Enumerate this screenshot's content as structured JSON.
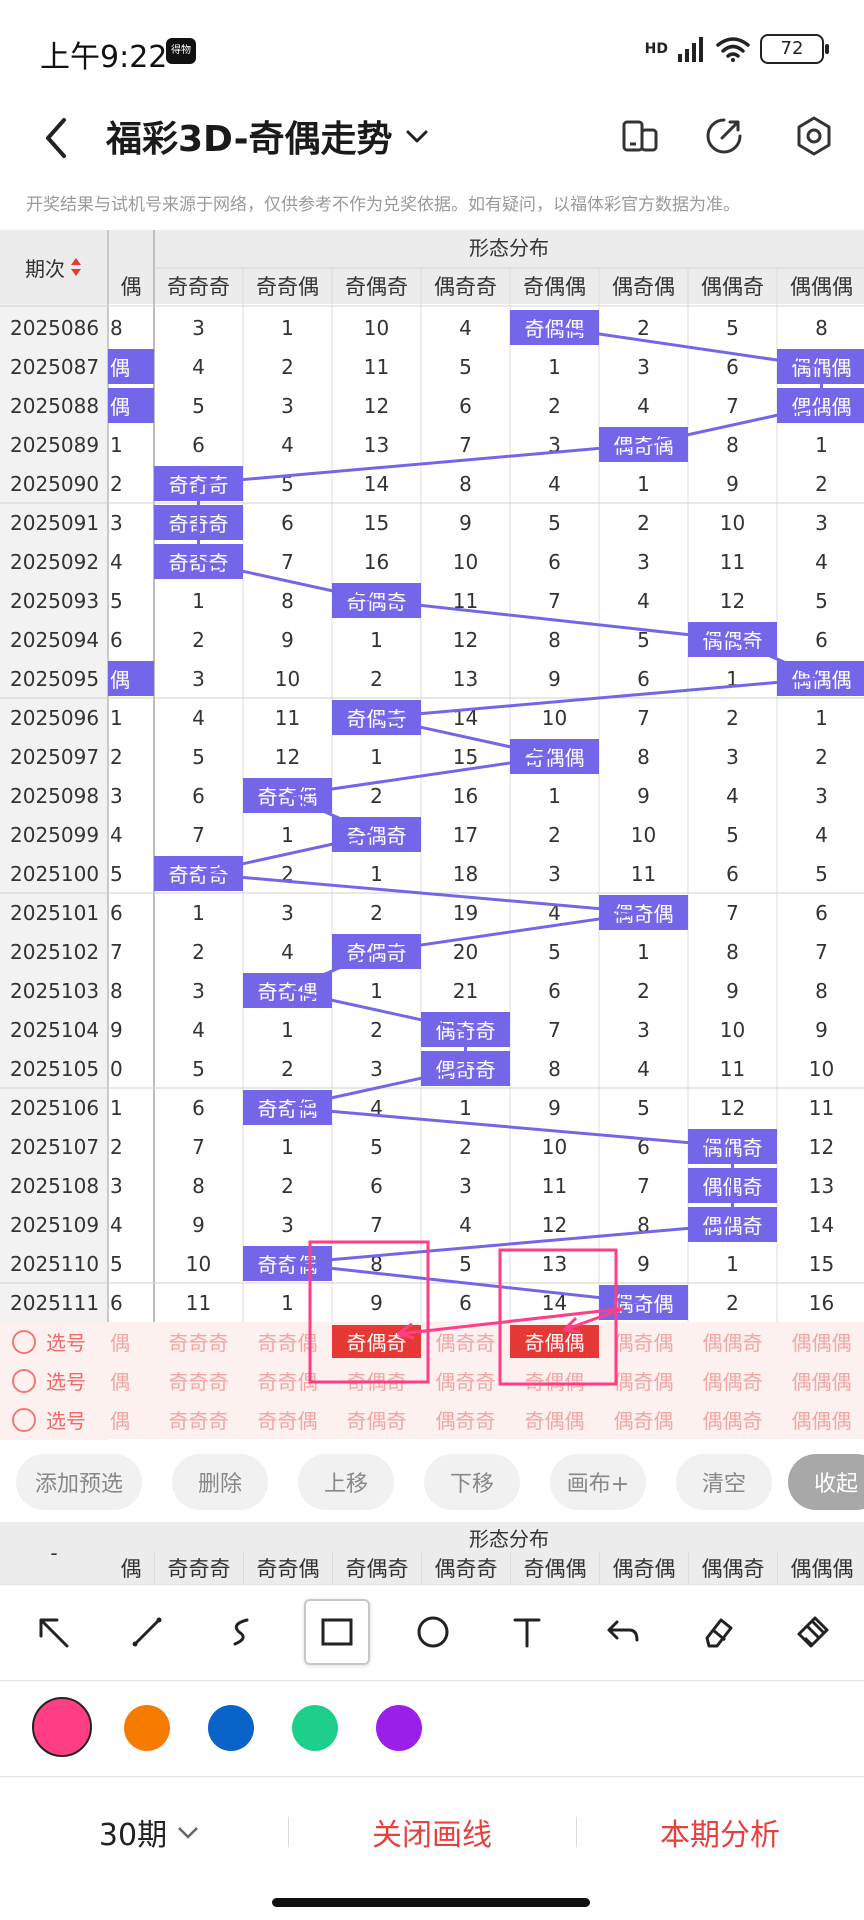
{
  "status_bar": {
    "time": "上午9:22",
    "app_badge": "得物",
    "network": "HD",
    "battery": "72"
  },
  "header": {
    "title": "福彩3D-奇偶走势"
  },
  "notice": "开奖结果与试机号来源于网络，仅供参考不作为兑奖依据。如有疑问，以福体彩官方数据为准。",
  "grid": {
    "period_header": "期次",
    "section_title": "形态分布",
    "left_partial_header": "偶",
    "columns": [
      "奇奇奇",
      "奇奇偶",
      "奇偶奇",
      "偶奇奇",
      "奇偶偶",
      "偶奇偶",
      "偶偶奇",
      "偶偶偶"
    ],
    "rows": [
      {
        "period": "2025086",
        "left": "8",
        "cells": [
          "3",
          "1",
          "10",
          "4",
          "奇偶偶",
          "2",
          "5",
          "8"
        ],
        "hit": 4,
        "left_hit": false
      },
      {
        "period": "2025087",
        "left": "偶",
        "cells": [
          "4",
          "2",
          "11",
          "5",
          "1",
          "3",
          "6",
          "偶偶偶"
        ],
        "hit": 7,
        "left_hit": true
      },
      {
        "period": "2025088",
        "left": "偶",
        "cells": [
          "5",
          "3",
          "12",
          "6",
          "2",
          "4",
          "7",
          "偶偶偶"
        ],
        "hit": 7,
        "left_hit": true
      },
      {
        "period": "2025089",
        "left": "1",
        "cells": [
          "6",
          "4",
          "13",
          "7",
          "3",
          "偶奇偶",
          "8",
          "1"
        ],
        "hit": 5,
        "left_hit": false
      },
      {
        "period": "2025090",
        "left": "2",
        "cells": [
          "奇奇奇",
          "5",
          "14",
          "8",
          "4",
          "1",
          "9",
          "2"
        ],
        "hit": 0,
        "left_hit": false
      },
      {
        "period": "2025091",
        "left": "3",
        "cells": [
          "奇奇奇",
          "6",
          "15",
          "9",
          "5",
          "2",
          "10",
          "3"
        ],
        "hit": 0,
        "left_hit": false
      },
      {
        "period": "2025092",
        "left": "4",
        "cells": [
          "奇奇奇",
          "7",
          "16",
          "10",
          "6",
          "3",
          "11",
          "4"
        ],
        "hit": 0,
        "left_hit": false
      },
      {
        "period": "2025093",
        "left": "5",
        "cells": [
          "1",
          "8",
          "奇偶奇",
          "11",
          "7",
          "4",
          "12",
          "5"
        ],
        "hit": 2,
        "left_hit": false
      },
      {
        "period": "2025094",
        "left": "6",
        "cells": [
          "2",
          "9",
          "1",
          "12",
          "8",
          "5",
          "偶偶奇",
          "6"
        ],
        "hit": 6,
        "left_hit": false
      },
      {
        "period": "2025095",
        "left": "偶",
        "cells": [
          "3",
          "10",
          "2",
          "13",
          "9",
          "6",
          "1",
          "偶偶偶"
        ],
        "hit": 7,
        "left_hit": true
      },
      {
        "period": "2025096",
        "left": "1",
        "cells": [
          "4",
          "11",
          "奇偶奇",
          "14",
          "10",
          "7",
          "2",
          "1"
        ],
        "hit": 2,
        "left_hit": false
      },
      {
        "period": "2025097",
        "left": "2",
        "cells": [
          "5",
          "12",
          "1",
          "15",
          "奇偶偶",
          "8",
          "3",
          "2"
        ],
        "hit": 4,
        "left_hit": false
      },
      {
        "period": "2025098",
        "left": "3",
        "cells": [
          "6",
          "奇奇偶",
          "2",
          "16",
          "1",
          "9",
          "4",
          "3"
        ],
        "hit": 1,
        "left_hit": false
      },
      {
        "period": "2025099",
        "left": "4",
        "cells": [
          "7",
          "1",
          "奇偶奇",
          "17",
          "2",
          "10",
          "5",
          "4"
        ],
        "hit": 2,
        "left_hit": false
      },
      {
        "period": "2025100",
        "left": "5",
        "cells": [
          "奇奇奇",
          "2",
          "1",
          "18",
          "3",
          "11",
          "6",
          "5"
        ],
        "hit": 0,
        "left_hit": false
      },
      {
        "period": "2025101",
        "left": "6",
        "cells": [
          "1",
          "3",
          "2",
          "19",
          "4",
          "偶奇偶",
          "7",
          "6"
        ],
        "hit": 5,
        "left_hit": false
      },
      {
        "period": "2025102",
        "left": "7",
        "cells": [
          "2",
          "4",
          "奇偶奇",
          "20",
          "5",
          "1",
          "8",
          "7"
        ],
        "hit": 2,
        "left_hit": false
      },
      {
        "period": "2025103",
        "left": "8",
        "cells": [
          "3",
          "奇奇偶",
          "1",
          "21",
          "6",
          "2",
          "9",
          "8"
        ],
        "hit": 1,
        "left_hit": false
      },
      {
        "period": "2025104",
        "left": "9",
        "cells": [
          "4",
          "1",
          "2",
          "偶奇奇",
          "7",
          "3",
          "10",
          "9"
        ],
        "hit": 3,
        "left_hit": false
      },
      {
        "period": "2025105",
        "left": "0",
        "cells": [
          "5",
          "2",
          "3",
          "偶奇奇",
          "8",
          "4",
          "11",
          "10"
        ],
        "hit": 3,
        "left_hit": false
      },
      {
        "period": "2025106",
        "left": "1",
        "cells": [
          "6",
          "奇奇偶",
          "4",
          "1",
          "9",
          "5",
          "12",
          "11"
        ],
        "hit": 1,
        "left_hit": false
      },
      {
        "period": "2025107",
        "left": "2",
        "cells": [
          "7",
          "1",
          "5",
          "2",
          "10",
          "6",
          "偶偶奇",
          "12"
        ],
        "hit": 6,
        "left_hit": false
      },
      {
        "period": "2025108",
        "left": "3",
        "cells": [
          "8",
          "2",
          "6",
          "3",
          "11",
          "7",
          "偶偶奇",
          "13"
        ],
        "hit": 6,
        "left_hit": false
      },
      {
        "period": "2025109",
        "left": "4",
        "cells": [
          "9",
          "3",
          "7",
          "4",
          "12",
          "8",
          "偶偶奇",
          "14"
        ],
        "hit": 6,
        "left_hit": false
      },
      {
        "period": "2025110",
        "left": "5",
        "cells": [
          "10",
          "奇奇偶",
          "8",
          "5",
          "13",
          "9",
          "1",
          "15"
        ],
        "hit": 1,
        "left_hit": false
      },
      {
        "period": "2025111",
        "left": "6",
        "cells": [
          "11",
          "1",
          "9",
          "6",
          "14",
          "偶奇偶",
          "2",
          "16"
        ],
        "hit": 5,
        "left_hit": false
      }
    ],
    "select_rows": [
      {
        "label": "选号",
        "left": "偶",
        "picked": [
          2,
          4
        ]
      },
      {
        "label": "选号",
        "left": "偶",
        "picked": []
      },
      {
        "label": "选号",
        "left": "偶",
        "picked": []
      }
    ]
  },
  "actions": {
    "add_preselect": "添加预选",
    "delete": "删除",
    "move_up": "上移",
    "move_down": "下移",
    "canvas_plus": "画布+",
    "clear": "清空",
    "collapse": "收起"
  },
  "second_header": {
    "period_placeholder": "-",
    "section_title": "形态分布"
  },
  "drawing_tools": [
    "arrow-tool",
    "line-tool",
    "curve-tool",
    "rectangle-tool",
    "circle-tool",
    "text-tool",
    "undo-tool",
    "eraser-tool",
    "clear-all-tool"
  ],
  "active_tool": "rectangle-tool",
  "colors": {
    "selected": "#ff3e86",
    "swatches": [
      "#ff3e86",
      "#f57c00",
      "#0a63c9",
      "#1ecf8c",
      "#9b1fe8"
    ],
    "hit": "#7466e8",
    "pick": "#e53935",
    "accent_red": "#e8403a"
  },
  "bottom": {
    "periods": "30期",
    "close_lines": "关闭画线",
    "analysis": "本期分析"
  }
}
